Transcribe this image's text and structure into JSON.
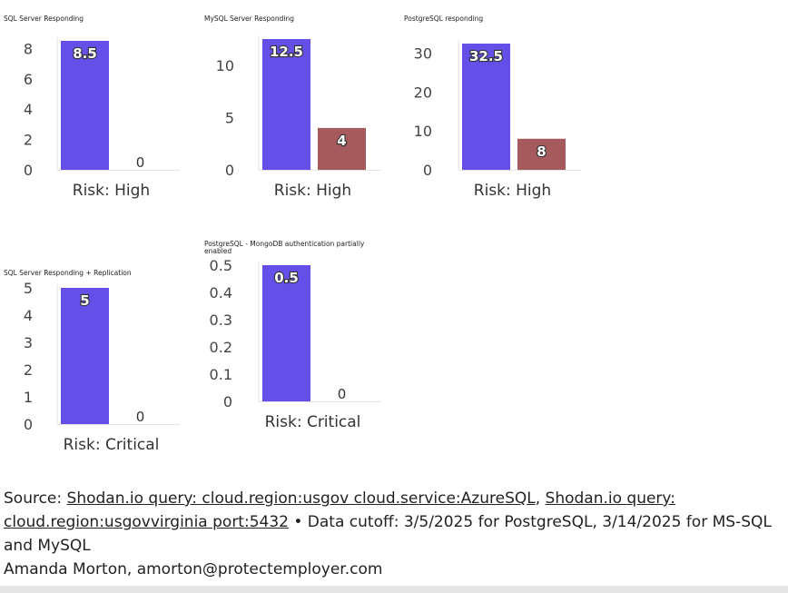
{
  "chart_data": [
    {
      "type": "bar",
      "title": "SQL Server Responding",
      "categories": [
        "Risk: High"
      ],
      "series": [
        {
          "values": [
            8.5
          ],
          "color": "#6450e8"
        },
        {
          "values": [
            0
          ],
          "color": "#a65a5e"
        }
      ],
      "yticks": [
        0,
        2,
        4,
        6,
        8
      ],
      "ylim": [
        0,
        8.5
      ]
    },
    {
      "type": "bar",
      "title": "MySQL Server Responding",
      "categories": [
        "Risk: High"
      ],
      "series": [
        {
          "values": [
            12.5
          ],
          "color": "#6450e8"
        },
        {
          "values": [
            4
          ],
          "color": "#a65a5e"
        }
      ],
      "yticks": [
        0,
        5,
        10
      ],
      "ylim": [
        0,
        12.5
      ]
    },
    {
      "type": "bar",
      "title": "PostgreSQL responding",
      "categories": [
        "Risk: High"
      ],
      "series": [
        {
          "values": [
            32.5
          ],
          "color": "#6450e8"
        },
        {
          "values": [
            8
          ],
          "color": "#a65a5e"
        }
      ],
      "yticks": [
        0,
        10,
        20,
        30
      ],
      "ylim": [
        0,
        32.5
      ]
    },
    {
      "type": "bar",
      "title": "SQL Server Responding + Replication",
      "categories": [
        "Risk: Critical"
      ],
      "series": [
        {
          "values": [
            5
          ],
          "color": "#6450e8"
        },
        {
          "values": [
            0
          ],
          "color": "#a65a5e"
        }
      ],
      "yticks": [
        0,
        1,
        2,
        3,
        4,
        5
      ],
      "ylim": [
        0,
        5
      ]
    },
    {
      "type": "bar",
      "title": "PostgreSQL - MongoDB authentication partially enabled",
      "categories": [
        "Risk: Critical"
      ],
      "series": [
        {
          "values": [
            0.5
          ],
          "color": "#6450e8"
        },
        {
          "values": [
            0
          ],
          "color": "#a65a5e"
        }
      ],
      "yticks": [
        0,
        0.1,
        0.2,
        0.3,
        0.4,
        0.5
      ],
      "ylim": [
        0,
        0.5
      ]
    }
  ],
  "footer": {
    "source_prefix": "Source: ",
    "link1": "Shodan.io query: cloud.region:usgov cloud.service:AzureSQL",
    "sep": ", ",
    "link2": "Shodan.io query: cloud.region:usgovvirginia port:5432",
    "cutoff": " • Data cutoff: 3/5/2025 for PostgreSQL, 3/14/2025 for MS-SQL and MySQL",
    "author": "Amanda Morton, amorton@protectemployer.com"
  }
}
